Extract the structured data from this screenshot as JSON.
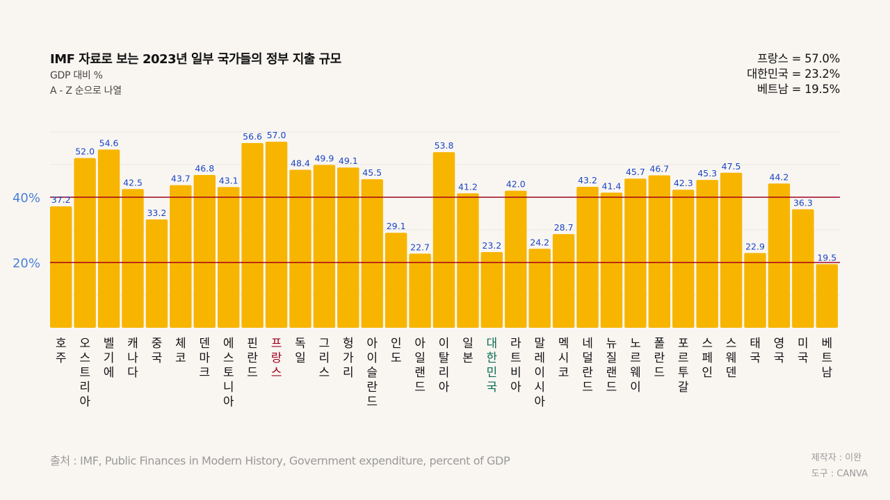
{
  "header": {
    "title": "IMF 자료로 보는 2023년 일부 국가들의 정부 지출 규모",
    "subtitle_unit": "GDP 대비 %",
    "subtitle_order": "A - Z 순으로 나열"
  },
  "highlights": [
    "프랑스 = 57.0%",
    "대한민국 = 23.2%",
    "베트남 = 19.5%"
  ],
  "footer": {
    "source": "출처 : IMF, Public Finances in Modern History, Government expenditure, percent of GDP",
    "author": "제작자 : 이완",
    "tool": "도구 : CANVA"
  },
  "colors": {
    "bar": "#f7b500",
    "value_label": "#1a44c4",
    "ref_line": "#a0001e",
    "axis_label": "#4a7fd6",
    "highlight_france": "#a0001e",
    "highlight_korea": "#0a6a52",
    "category_default": "#111111"
  },
  "chart_data": {
    "type": "bar",
    "title": "IMF 자료로 보는 2023년 일부 국가들의 정부 지출 규모",
    "subtitle": "GDP 대비 %",
    "xlabel": "",
    "ylabel": "GDP 대비 %",
    "ylim": [
      0,
      60
    ],
    "grid": true,
    "gridlines": [
      10,
      30,
      50,
      60
    ],
    "reference_lines": [
      {
        "value": 40,
        "label": "40%"
      },
      {
        "value": 20,
        "label": "20%"
      }
    ],
    "categories": [
      "호주",
      "오스트리아",
      "벨기에",
      "캐나다",
      "중국",
      "체코",
      "덴마크",
      "에스토니아",
      "핀란드",
      "프랑스",
      "독일",
      "그리스",
      "헝가리",
      "아이슬란드",
      "인도",
      "아일랜드",
      "이탈리아",
      "일본",
      "대한민국",
      "라트비아",
      "말레이시아",
      "멕시코",
      "네덜란드",
      "뉴질랜드",
      "노르웨이",
      "폴란드",
      "포르투갈",
      "스페인",
      "스웨덴",
      "태국",
      "영국",
      "미국",
      "베트남"
    ],
    "values": [
      37.2,
      52.0,
      54.6,
      42.5,
      33.2,
      43.7,
      46.8,
      43.1,
      56.6,
      57.0,
      48.4,
      49.9,
      49.1,
      45.5,
      29.1,
      22.7,
      53.8,
      41.2,
      23.2,
      42.0,
      24.2,
      28.7,
      43.2,
      41.4,
      45.7,
      46.7,
      42.3,
      45.3,
      47.5,
      22.9,
      44.2,
      36.3,
      19.5
    ],
    "value_labels": [
      "37.2",
      "52.0",
      "54.6",
      "42.5",
      "33.2",
      "43.7",
      "46.8",
      "43.1",
      "56.6",
      "57.0",
      "48.4",
      "49.9",
      "49.1",
      "45.5",
      "29.1",
      "22.7",
      "53.8",
      "41.2",
      "23.2",
      "42.0",
      "24.2",
      "28.7",
      "43.2",
      "41.4",
      "45.7",
      "46.7",
      "42.3",
      "45.3",
      "47.5",
      "22.9",
      "44.2",
      "36.3",
      "19.5"
    ],
    "highlighted_categories": {
      "프랑스": "france",
      "대한민국": "korea"
    }
  }
}
